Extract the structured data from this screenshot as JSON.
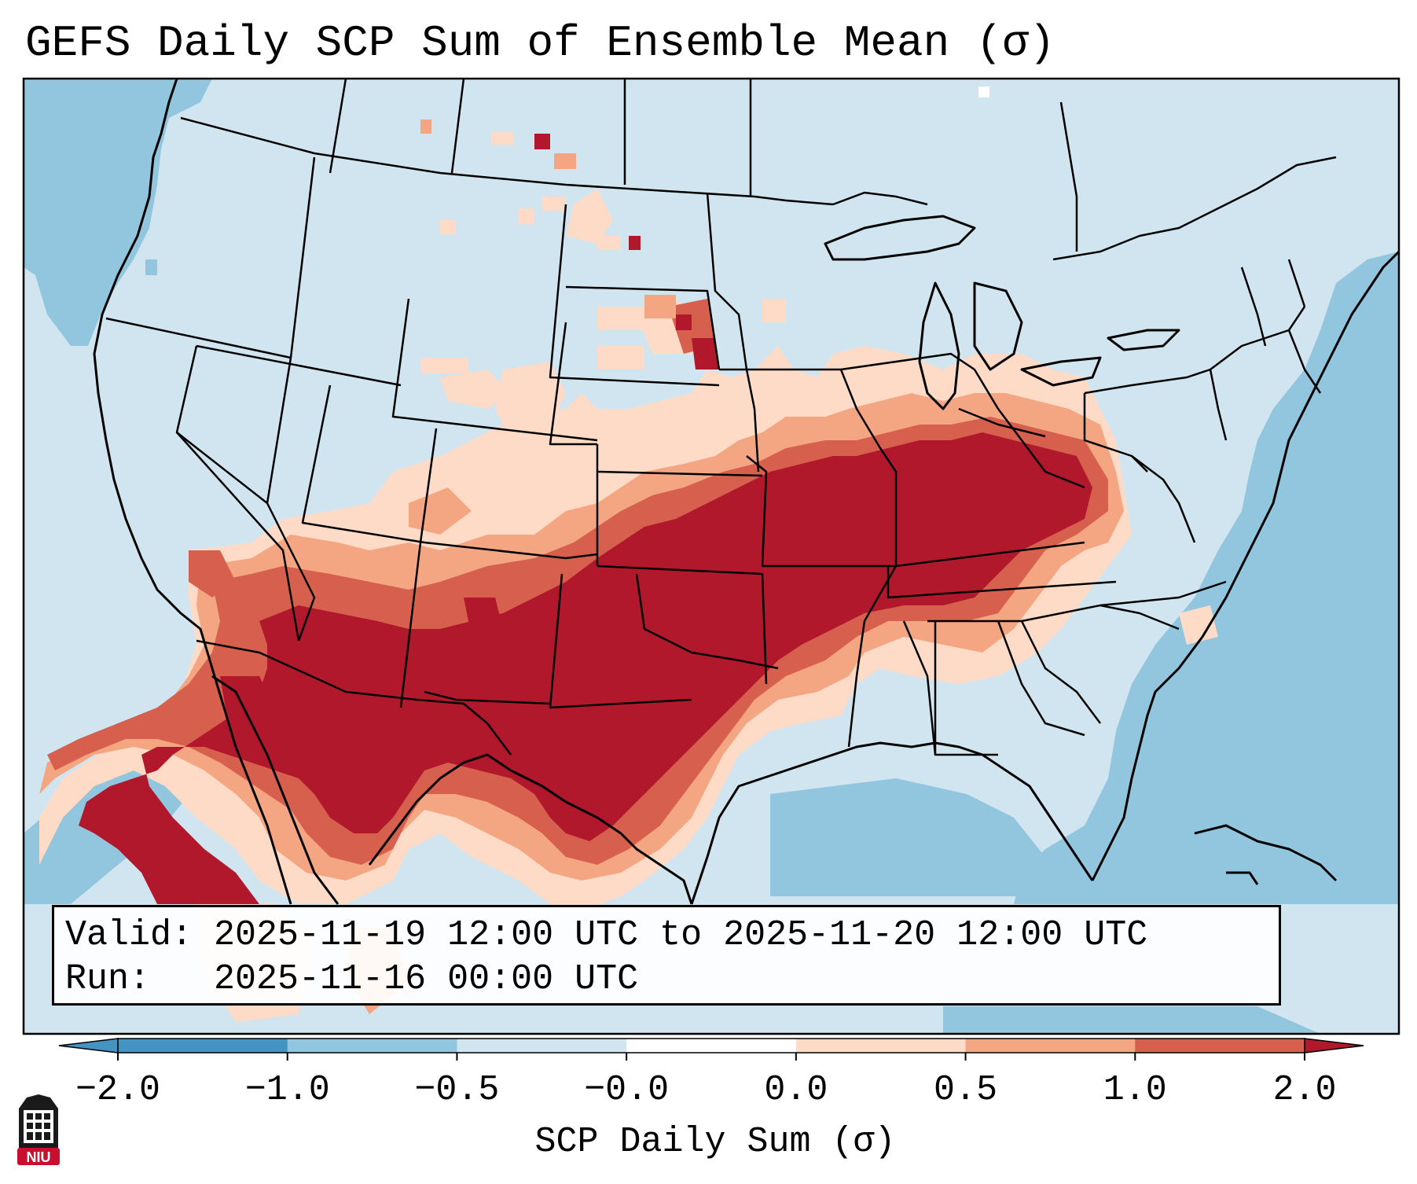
{
  "title": "GEFS Daily SCP Sum of Ensemble Mean (σ)",
  "info": {
    "valid_line": "Valid: 2025-11-19 12:00 UTC to 2025-11-20 12:00 UTC",
    "run_line": "Run:   2025-11-16 00:00 UTC"
  },
  "colorbar": {
    "label": "SCP Daily Sum (σ)",
    "ticks": [
      "−2.0",
      "−1.0",
      "−0.5",
      "−0.0",
      "0.0",
      "0.5",
      "1.0",
      "2.0"
    ],
    "colors": [
      "#4393c3",
      "#92c5de",
      "#d1e5f0",
      "#ffffff",
      "#fddbc7",
      "#f4a582",
      "#d6604d",
      "#b2182b"
    ],
    "extend": "both"
  },
  "map": {
    "domain": "CONUS",
    "features": [
      "coastlines",
      "state borders",
      "country borders"
    ],
    "field_colors": {
      "ocean_light": "#92c5de",
      "background": "#d1e5f0",
      "peach": "#fddbc7",
      "salmon": "#f4a582",
      "red": "#d6604d",
      "dark_red": "#b2182b"
    }
  },
  "logo": {
    "text": "NIU",
    "color": "#c8102e"
  }
}
